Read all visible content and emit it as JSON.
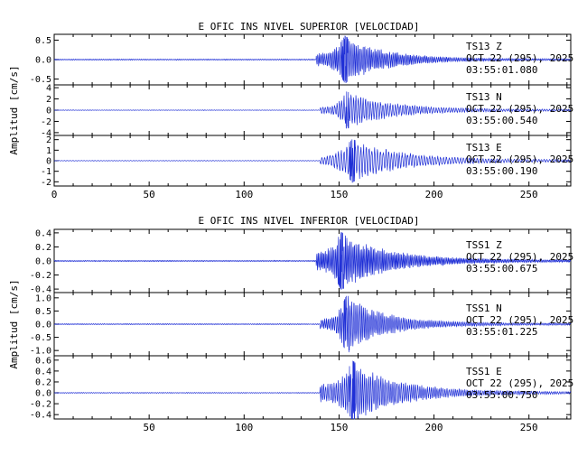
{
  "chart_data": [
    {
      "type": "line",
      "title": "E OFIC INS NIVEL SUPERIOR [VELOCIDAD]",
      "ylabel": "Amplitud [cm/s]",
      "xlim": [
        0,
        272
      ],
      "x_ticks": [
        0,
        50,
        100,
        150,
        200,
        250
      ],
      "x_tick_labels": [
        "0",
        "50",
        "100",
        "150",
        "200",
        "250"
      ],
      "traces": [
        {
          "station": "TS13",
          "component": "Z",
          "date": "OCT 22 (295), 2025",
          "time": "03:55:01.080",
          "ylim": [
            -0.65,
            0.65
          ],
          "y_ticks": [
            -0.5,
            0.0,
            0.5
          ],
          "y_tick_labels": [
            "-0.5",
            "0.0",
            "0.5"
          ],
          "envelope": {
            "onset": 138,
            "pre_amp": 0.015,
            "coda_amp": 0.18,
            "peak_time": 153,
            "peak_amp": 0.62,
            "rise": 2,
            "decay": 22,
            "period": 0.9,
            "end_amp": 0.02
          }
        },
        {
          "station": "TS13",
          "component": "N",
          "date": "OCT 22 (295), 2025",
          "time": "03:55:00.540",
          "ylim": [
            -4.5,
            4.5
          ],
          "y_ticks": [
            -4,
            -2,
            0,
            2,
            4
          ],
          "y_tick_labels": [
            "-4",
            "-2",
            "0",
            "2",
            "4"
          ],
          "envelope": {
            "onset": 140,
            "pre_amp": 0.05,
            "coda_amp": 0.6,
            "peak_time": 154,
            "peak_amp": 3.4,
            "rise": 2.5,
            "decay": 24,
            "period": 1.3,
            "end_amp": 0.15
          }
        },
        {
          "station": "TS13",
          "component": "E",
          "date": "OCT 22 (295), 2025",
          "time": "03:55:00.190",
          "ylim": [
            -2.4,
            2.4
          ],
          "y_ticks": [
            -2,
            -1,
            0,
            1,
            2
          ],
          "y_tick_labels": [
            "-2",
            "-1",
            "0",
            "1",
            "2"
          ],
          "envelope": {
            "onset": 140,
            "pre_amp": 0.03,
            "coda_amp": 0.4,
            "peak_time": 157,
            "peak_amp": 2.1,
            "rise": 5,
            "decay": 26,
            "period": 1.5,
            "end_amp": 0.1
          }
        }
      ]
    },
    {
      "type": "line",
      "title": "E OFIC INS NIVEL INFERIOR [VELOCIDAD]",
      "ylabel": "Amplitud [cm/s]",
      "xlim": [
        0,
        272
      ],
      "x_ticks": [
        50,
        100,
        150,
        200,
        250
      ],
      "x_tick_labels": [
        "50",
        "100",
        "150",
        "200",
        "250"
      ],
      "traces": [
        {
          "station": "TSS1",
          "component": "Z",
          "date": "OCT 22 (295), 2025",
          "time": "03:55:00.675",
          "ylim": [
            -0.45,
            0.45
          ],
          "y_ticks": [
            -0.4,
            -0.2,
            0.0,
            0.2,
            0.4
          ],
          "y_tick_labels": [
            "-0.4",
            "-0.2",
            "0.0",
            "0.2",
            "0.4"
          ],
          "envelope": {
            "onset": 138,
            "pre_amp": 0.008,
            "coda_amp": 0.15,
            "peak_time": 151,
            "peak_amp": 0.42,
            "rise": 2,
            "decay": 25,
            "period": 0.8,
            "end_amp": 0.015
          }
        },
        {
          "station": "TSS1",
          "component": "N",
          "date": "OCT 22 (295), 2025",
          "time": "03:55:01.225",
          "ylim": [
            -1.2,
            1.2
          ],
          "y_ticks": [
            -1.0,
            -0.5,
            0.0,
            0.5,
            1.0
          ],
          "y_tick_labels": [
            "-1.0",
            "-0.5",
            "0.0",
            "0.5",
            "1.0"
          ],
          "envelope": {
            "onset": 140,
            "pre_amp": 0.02,
            "coda_amp": 0.22,
            "peak_time": 154,
            "peak_amp": 1.15,
            "rise": 2,
            "decay": 20,
            "period": 1.0,
            "end_amp": 0.04
          }
        },
        {
          "station": "TSS1",
          "component": "E",
          "date": "OCT 22 (295), 2025",
          "time": "03:55:00.750",
          "ylim": [
            -0.48,
            0.68
          ],
          "y_ticks": [
            -0.4,
            -0.2,
            0.0,
            0.2,
            0.4,
            0.6
          ],
          "y_tick_labels": [
            "-0.4",
            "-0.2",
            "0.0",
            "0.2",
            "0.4",
            "0.6"
          ],
          "envelope": {
            "onset": 140,
            "pre_amp": 0.008,
            "coda_amp": 0.18,
            "peak_time": 157,
            "peak_amp": 0.6,
            "rise": 3,
            "decay": 24,
            "period": 1.1,
            "end_amp": 0.02
          }
        }
      ]
    }
  ],
  "colors": {
    "trace": "#1f2fd6",
    "axis": "#000000",
    "background": "#ffffff"
  }
}
